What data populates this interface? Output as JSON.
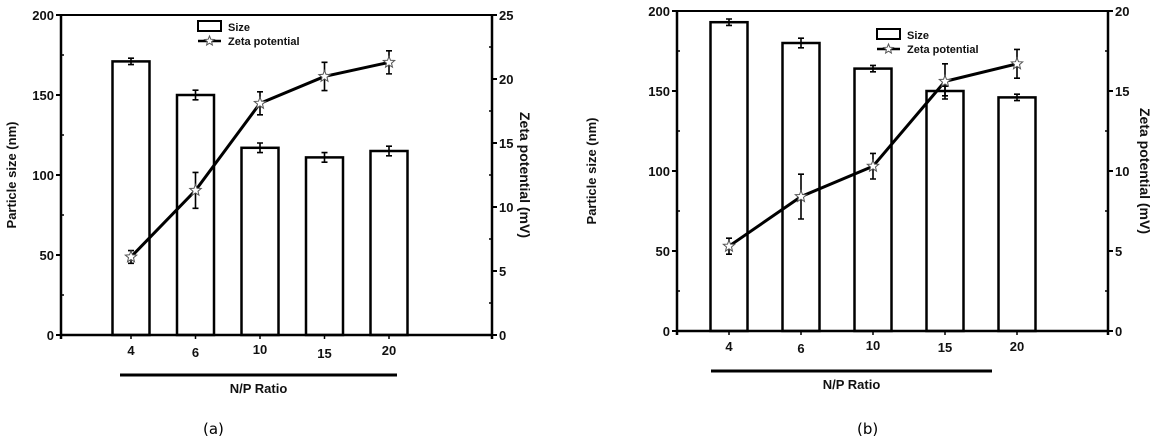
{
  "chart_data": [
    {
      "type": "bar+line",
      "panel_label": "(a)",
      "title": "",
      "xlabel": "N/P  Ratio",
      "ylabel": "Particle size (nm)",
      "y2label": "Zeta potential (mV)",
      "categories": [
        "4",
        "6",
        "10",
        "15",
        "20"
      ],
      "ylim": [
        0,
        200
      ],
      "y2lim": [
        0,
        25
      ],
      "yticks": [
        0,
        50,
        100,
        150,
        200
      ],
      "y2ticks": [
        0,
        5,
        10,
        15,
        20,
        25
      ],
      "legend": [
        "Size",
        "Zeta potential"
      ],
      "legend_position": "top-center",
      "grid": false,
      "series": [
        {
          "name": "Size",
          "type": "bar",
          "axis": "left",
          "values": [
            171,
            150,
            117,
            111,
            115
          ],
          "errors": [
            2,
            3,
            3,
            3,
            3
          ]
        },
        {
          "name": "Zeta potential",
          "type": "line",
          "axis": "right",
          "marker": "star",
          "values": [
            6.1,
            11.3,
            18.1,
            20.2,
            21.3
          ],
          "errors": [
            0.5,
            1.4,
            0.9,
            1.1,
            0.9
          ]
        }
      ]
    },
    {
      "type": "bar+line",
      "panel_label": "(b)",
      "title": "",
      "xlabel": "N/P  Ratio",
      "ylabel": "Particle size (nm)",
      "y2label": "Zeta potential (mV)",
      "categories": [
        "4",
        "6",
        "10",
        "15",
        "20"
      ],
      "ylim": [
        0,
        200
      ],
      "y2lim": [
        0,
        20
      ],
      "yticks": [
        0,
        50,
        100,
        150,
        200
      ],
      "y2ticks": [
        0,
        5,
        10,
        15,
        20
      ],
      "legend": [
        "Size",
        "Zeta potential"
      ],
      "legend_position": "top-right",
      "grid": false,
      "series": [
        {
          "name": "Size",
          "type": "bar",
          "axis": "left",
          "values": [
            193,
            180,
            164,
            150,
            146
          ],
          "errors": [
            2,
            3,
            2,
            3,
            2
          ]
        },
        {
          "name": "Zeta potential",
          "type": "line",
          "axis": "right",
          "marker": "star",
          "values": [
            5.3,
            8.4,
            10.3,
            15.6,
            16.7
          ],
          "errors": [
            0.5,
            1.4,
            0.8,
            1.1,
            0.9
          ]
        }
      ]
    }
  ]
}
